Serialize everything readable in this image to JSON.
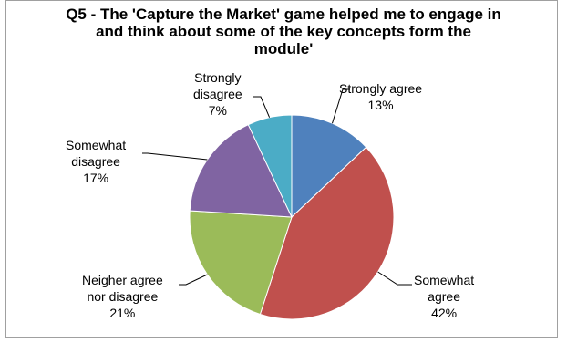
{
  "chart_data": {
    "type": "pie",
    "title_lines": [
      "Q5 - The 'Capture the Market' game helped me to engage in",
      "and think about some of the key concepts form the",
      "module'"
    ],
    "slices": [
      {
        "label_lines": [
          "Strongly agree"
        ],
        "pct_label": "13%",
        "value": 13,
        "color": "#4F81BD"
      },
      {
        "label_lines": [
          "Somewhat",
          "agree"
        ],
        "pct_label": "42%",
        "value": 42,
        "color": "#C0504D"
      },
      {
        "label_lines": [
          "Neigher agree",
          "nor disagree"
        ],
        "pct_label": "21%",
        "value": 21,
        "color": "#9BBB59"
      },
      {
        "label_lines": [
          "Somewhat",
          "disagree"
        ],
        "pct_label": "17%",
        "value": 17,
        "color": "#8064A2"
      },
      {
        "label_lines": [
          "Strongly",
          "disagree"
        ],
        "pct_label": "7%",
        "value": 7,
        "color": "#4BACC6"
      }
    ],
    "start": "12 o'clock",
    "direction": "clockwise",
    "legend": "none"
  }
}
